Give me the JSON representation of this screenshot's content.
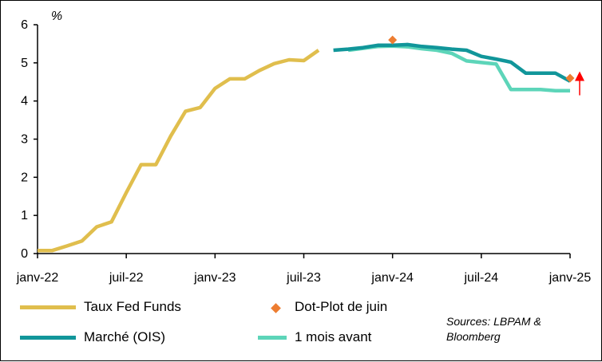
{
  "chart_data": {
    "type": "line",
    "ylabel": "%",
    "ylim": [
      0,
      6
    ],
    "yticks": [
      "0",
      "1",
      "2",
      "3",
      "4",
      "5",
      "6"
    ],
    "xticks": [
      {
        "label": "janv-22",
        "date": "2022-01"
      },
      {
        "label": "juil-22",
        "date": "2022-07"
      },
      {
        "label": "janv-23",
        "date": "2023-01"
      },
      {
        "label": "juil-23",
        "date": "2023-07"
      },
      {
        "label": "janv-24",
        "date": "2024-01"
      },
      {
        "label": "juil-24",
        "date": "2024-07"
      },
      {
        "label": "janv-25",
        "date": "2025-01"
      }
    ],
    "xlim": [
      "2022-01",
      "2025-01"
    ],
    "grid": false,
    "legend_position": "bottom",
    "series": [
      {
        "name": "Taux Fed Funds",
        "type": "line",
        "color": "#E0BE4D",
        "points": [
          [
            "2022-01",
            0.08
          ],
          [
            "2022-02",
            0.08
          ],
          [
            "2022-03",
            0.2
          ],
          [
            "2022-04",
            0.33
          ],
          [
            "2022-05",
            0.7
          ],
          [
            "2022-06",
            0.83
          ],
          [
            "2022-07",
            1.6
          ],
          [
            "2022-08",
            2.33
          ],
          [
            "2022-09",
            2.33
          ],
          [
            "2022-10",
            3.08
          ],
          [
            "2022-11",
            3.73
          ],
          [
            "2022-12",
            3.83
          ],
          [
            "2023-01",
            4.33
          ],
          [
            "2023-02",
            4.58
          ],
          [
            "2023-03",
            4.58
          ],
          [
            "2023-04",
            4.8
          ],
          [
            "2023-05",
            4.98
          ],
          [
            "2023-06",
            5.08
          ],
          [
            "2023-07",
            5.06
          ],
          [
            "2023-08",
            5.33
          ]
        ]
      },
      {
        "name": "Marché (OIS)",
        "type": "line",
        "color": "#11969A",
        "points": [
          [
            "2023-09",
            5.33
          ],
          [
            "2023-10",
            5.36
          ],
          [
            "2023-11",
            5.4
          ],
          [
            "2023-12",
            5.46
          ],
          [
            "2024-01",
            5.46
          ],
          [
            "2024-02",
            5.48
          ],
          [
            "2024-03",
            5.43
          ],
          [
            "2024-04",
            5.4
          ],
          [
            "2024-05",
            5.36
          ],
          [
            "2024-06",
            5.33
          ],
          [
            "2024-07",
            5.17
          ],
          [
            "2024-08",
            5.1
          ],
          [
            "2024-09",
            5.02
          ],
          [
            "2024-10",
            4.73
          ],
          [
            "2024-11",
            4.73
          ],
          [
            "2024-12",
            4.73
          ],
          [
            "2025-01",
            4.52
          ]
        ]
      },
      {
        "name": "1 mois avant",
        "type": "line",
        "color": "#5DD5B9",
        "points": [
          [
            "2023-10",
            5.33
          ],
          [
            "2023-11",
            5.38
          ],
          [
            "2023-12",
            5.43
          ],
          [
            "2024-01",
            5.44
          ],
          [
            "2024-02",
            5.42
          ],
          [
            "2024-03",
            5.37
          ],
          [
            "2024-04",
            5.33
          ],
          [
            "2024-05",
            5.25
          ],
          [
            "2024-06",
            5.05
          ],
          [
            "2024-07",
            5.01
          ],
          [
            "2024-08",
            4.97
          ],
          [
            "2024-09",
            4.3
          ],
          [
            "2024-10",
            4.3
          ],
          [
            "2024-11",
            4.3
          ],
          [
            "2024-12",
            4.27
          ],
          [
            "2025-01",
            4.27
          ]
        ]
      },
      {
        "name": "Dot-Plot de juin",
        "type": "scatter",
        "marker": "diamond",
        "color": "#ED7D31",
        "points": [
          [
            "2024-01",
            5.6
          ],
          [
            "2025-01",
            4.6
          ]
        ]
      }
    ],
    "annotations": [
      {
        "type": "arrow",
        "direction": "up",
        "color": "#FF0000",
        "at": [
          "2025-01",
          4.4
        ]
      }
    ]
  },
  "sources_line1": "Sources: LBPAM &",
  "sources_line2": "Bloomberg"
}
